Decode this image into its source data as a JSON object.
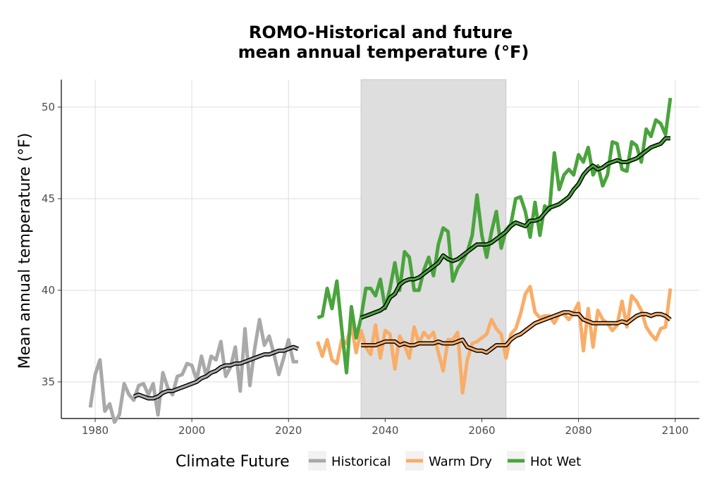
{
  "chart_data": {
    "type": "line",
    "title_line1": "ROMO-Historical and future",
    "title_line2": "mean annual temperature (°F)",
    "xlabel": "",
    "ylabel": "Mean annual temperature (°F)",
    "xlim": [
      1973,
      2105
    ],
    "ylim": [
      33,
      51.5
    ],
    "x_ticks": [
      1980,
      2000,
      2020,
      2040,
      2060,
      2080,
      2100
    ],
    "y_ticks": [
      35,
      40,
      45,
      50
    ],
    "grid": true,
    "shaded_period": {
      "x_start": 2035,
      "x_end": 2065,
      "color": "#dcdcdc"
    },
    "legend": {
      "title": "Climate Future",
      "position": "bottom",
      "entries": [
        {
          "label": "Historical",
          "color": "#a9a9a9"
        },
        {
          "label": "Warm Dry",
          "color": "#f9ad68"
        },
        {
          "label": "Hot Wet",
          "color": "#4aa43d"
        }
      ]
    },
    "series": [
      {
        "name": "Historical",
        "color": "#a9a9a9",
        "x": [
          1979,
          1980,
          1981,
          1982,
          1983,
          1984,
          1985,
          1986,
          1987,
          1988,
          1989,
          1990,
          1991,
          1992,
          1993,
          1994,
          1995,
          1996,
          1997,
          1998,
          1999,
          2000,
          2001,
          2002,
          2003,
          2004,
          2005,
          2006,
          2007,
          2008,
          2009,
          2010,
          2011,
          2012,
          2013,
          2014,
          2015,
          2016,
          2017,
          2018,
          2019,
          2020,
          2021,
          2022
        ],
        "y": [
          33.6,
          35.4,
          36.2,
          33.4,
          33.8,
          32.8,
          33.2,
          34.9,
          34.3,
          34.0,
          34.8,
          34.9,
          34.3,
          34.9,
          33.2,
          35.5,
          34.7,
          34.3,
          35.3,
          35.4,
          36.0,
          35.9,
          35.1,
          36.4,
          35.3,
          36.4,
          36.2,
          37.2,
          35.3,
          35.8,
          36.9,
          34.5,
          37.9,
          34.8,
          36.8,
          38.4,
          37.0,
          37.5,
          36.5,
          35.4,
          36.3,
          37.3,
          36.1,
          36.1
        ]
      },
      {
        "name": "Historical trend",
        "color": "#a9a9a9",
        "x": [
          1988,
          1989,
          1990,
          1991,
          1992,
          1993,
          1994,
          1995,
          1996,
          1997,
          1998,
          1999,
          2000,
          2001,
          2002,
          2003,
          2004,
          2005,
          2006,
          2007,
          2008,
          2009,
          2010,
          2011,
          2012,
          2013,
          2014,
          2015,
          2016,
          2017,
          2018,
          2019,
          2020,
          2021,
          2022
        ],
        "y": [
          34.2,
          34.3,
          34.2,
          34.1,
          34.1,
          34.2,
          34.4,
          34.5,
          34.5,
          34.6,
          34.7,
          34.8,
          34.9,
          35.0,
          35.2,
          35.3,
          35.5,
          35.6,
          35.8,
          35.9,
          35.9,
          36.0,
          36.0,
          36.1,
          36.2,
          36.3,
          36.4,
          36.5,
          36.5,
          36.6,
          36.7,
          36.7,
          36.8,
          36.9,
          36.8
        ]
      },
      {
        "name": "Warm Dry",
        "color": "#f9ad68",
        "x": [
          2026,
          2027,
          2028,
          2029,
          2030,
          2031,
          2032,
          2033,
          2034,
          2035,
          2036,
          2037,
          2038,
          2039,
          2040,
          2041,
          2042,
          2043,
          2044,
          2045,
          2046,
          2047,
          2048,
          2049,
          2050,
          2051,
          2052,
          2053,
          2054,
          2055,
          2056,
          2057,
          2058,
          2059,
          2060,
          2061,
          2062,
          2063,
          2064,
          2065,
          2066,
          2067,
          2068,
          2069,
          2070,
          2071,
          2072,
          2073,
          2074,
          2075,
          2076,
          2077,
          2078,
          2079,
          2080,
          2081,
          2082,
          2083,
          2084,
          2085,
          2086,
          2087,
          2088,
          2089,
          2090,
          2091,
          2092,
          2093,
          2094,
          2095,
          2096,
          2097,
          2098,
          2099
        ],
        "y": [
          37.2,
          36.4,
          37.3,
          36.2,
          36.0,
          37.3,
          37.1,
          38.1,
          36.6,
          37.8,
          36.9,
          36.5,
          38.1,
          36.3,
          37.8,
          37.6,
          35.7,
          37.5,
          37.0,
          36.3,
          38.0,
          37.1,
          37.7,
          37.4,
          37.7,
          36.6,
          35.6,
          37.3,
          37.3,
          37.7,
          34.4,
          36.2,
          37.1,
          37.2,
          37.4,
          37.6,
          38.4,
          37.9,
          37.6,
          36.3,
          37.6,
          37.9,
          38.7,
          39.8,
          40.2,
          38.8,
          38.5,
          38.6,
          38.6,
          38.2,
          38.7,
          38.7,
          38.4,
          38.8,
          39.3,
          36.7,
          39.0,
          36.9,
          38.9,
          38.4,
          38.2,
          37.8,
          38.1,
          39.4,
          38.0,
          39.7,
          39.4,
          38.9,
          38.0,
          37.6,
          37.3,
          37.9,
          38.0,
          40.1
        ]
      },
      {
        "name": "Warm Dry trend",
        "color": "#f9ad68",
        "x": [
          2035,
          2036,
          2037,
          2038,
          2039,
          2040,
          2041,
          2042,
          2043,
          2044,
          2045,
          2046,
          2047,
          2048,
          2049,
          2050,
          2051,
          2052,
          2053,
          2054,
          2055,
          2056,
          2057,
          2058,
          2059,
          2060,
          2061,
          2062,
          2063,
          2064,
          2065,
          2066,
          2067,
          2068,
          2069,
          2070,
          2071,
          2072,
          2073,
          2074,
          2075,
          2076,
          2077,
          2078,
          2079,
          2080,
          2081,
          2082,
          2083,
          2084,
          2085,
          2086,
          2087,
          2088,
          2089,
          2090,
          2091,
          2092,
          2093,
          2094,
          2095,
          2096,
          2097,
          2098,
          2099
        ],
        "y": [
          37.0,
          37.0,
          37.0,
          37.0,
          37.1,
          37.2,
          37.2,
          37.2,
          37.0,
          37.1,
          37.0,
          37.0,
          37.1,
          37.1,
          37.1,
          37.1,
          37.2,
          37.1,
          37.1,
          37.1,
          37.2,
          37.3,
          36.9,
          36.8,
          36.7,
          36.7,
          36.6,
          36.8,
          37.0,
          37.0,
          37.0,
          37.3,
          37.5,
          37.6,
          37.8,
          38.0,
          38.2,
          38.3,
          38.4,
          38.5,
          38.6,
          38.7,
          38.8,
          38.8,
          38.7,
          38.7,
          38.4,
          38.3,
          38.2,
          38.2,
          38.2,
          38.2,
          38.2,
          38.2,
          38.3,
          38.2,
          38.4,
          38.6,
          38.7,
          38.7,
          38.6,
          38.7,
          38.7,
          38.6,
          38.4
        ]
      },
      {
        "name": "Hot Wet",
        "color": "#4aa43d",
        "x": [
          2026,
          2027,
          2028,
          2029,
          2030,
          2031,
          2032,
          2033,
          2034,
          2035,
          2036,
          2037,
          2038,
          2039,
          2040,
          2041,
          2042,
          2043,
          2044,
          2045,
          2046,
          2047,
          2048,
          2049,
          2050,
          2051,
          2052,
          2053,
          2054,
          2055,
          2056,
          2057,
          2058,
          2059,
          2060,
          2061,
          2062,
          2063,
          2064,
          2065,
          2066,
          2067,
          2068,
          2069,
          2070,
          2071,
          2072,
          2073,
          2074,
          2075,
          2076,
          2077,
          2078,
          2079,
          2080,
          2081,
          2082,
          2083,
          2084,
          2085,
          2086,
          2087,
          2088,
          2089,
          2090,
          2091,
          2092,
          2093,
          2094,
          2095,
          2096,
          2097,
          2098,
          2099
        ],
        "y": [
          38.5,
          38.6,
          40.1,
          39.0,
          40.5,
          37.9,
          35.5,
          39.1,
          37.4,
          38.5,
          40.1,
          40.1,
          39.7,
          40.6,
          39.0,
          40.1,
          41.5,
          40.0,
          42.1,
          41.8,
          40.0,
          40.0,
          41.1,
          41.8,
          40.8,
          42.5,
          43.4,
          43.2,
          40.5,
          41.2,
          41.6,
          42.1,
          43.0,
          45.2,
          43.0,
          41.8,
          43.2,
          44.3,
          42.3,
          43.3,
          43.6,
          45.0,
          45.1,
          44.3,
          42.9,
          44.8,
          43.0,
          44.6,
          44.4,
          47.5,
          45.5,
          46.3,
          46.6,
          46.3,
          47.4,
          47.0,
          47.8,
          46.3,
          46.8,
          45.7,
          46.3,
          48.1,
          48.0,
          46.6,
          46.5,
          48.1,
          47.9,
          47.0,
          48.8,
          48.4,
          49.3,
          49.1,
          48.5,
          50.5
        ]
      },
      {
        "name": "Hot Wet trend",
        "color": "#4aa43d",
        "x": [
          2035,
          2036,
          2037,
          2038,
          2039,
          2040,
          2041,
          2042,
          2043,
          2044,
          2045,
          2046,
          2047,
          2048,
          2049,
          2050,
          2051,
          2052,
          2053,
          2054,
          2055,
          2056,
          2057,
          2058,
          2059,
          2060,
          2061,
          2062,
          2063,
          2064,
          2065,
          2066,
          2067,
          2068,
          2069,
          2070,
          2071,
          2072,
          2073,
          2074,
          2075,
          2076,
          2077,
          2078,
          2079,
          2080,
          2081,
          2082,
          2083,
          2084,
          2085,
          2086,
          2087,
          2088,
          2089,
          2090,
          2091,
          2092,
          2093,
          2094,
          2095,
          2096,
          2097,
          2098,
          2099
        ],
        "y": [
          38.5,
          38.6,
          38.7,
          38.8,
          38.9,
          39.1,
          39.6,
          39.8,
          40.3,
          40.5,
          40.6,
          40.6,
          40.7,
          40.9,
          41.1,
          41.3,
          41.5,
          41.9,
          41.7,
          41.6,
          41.7,
          41.9,
          42.1,
          42.3,
          42.5,
          42.5,
          42.5,
          42.6,
          42.8,
          43.0,
          43.2,
          43.5,
          43.7,
          43.6,
          43.5,
          43.8,
          43.8,
          43.9,
          44.2,
          44.5,
          44.6,
          44.7,
          44.9,
          45.1,
          45.5,
          45.8,
          46.3,
          46.6,
          46.8,
          46.6,
          46.7,
          46.9,
          47.0,
          47.1,
          47.0,
          47.0,
          47.1,
          47.2,
          47.4,
          47.6,
          47.8,
          47.9,
          48.0,
          48.3,
          48.3
        ]
      }
    ]
  }
}
